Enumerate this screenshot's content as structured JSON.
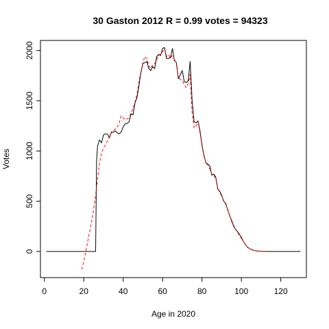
{
  "chart_data": {
    "type": "line",
    "title": "30 Gaston 2012 R = 0.99 votes = 94323",
    "xlabel": "Age in 2020",
    "ylabel": "Votes",
    "xlim": [
      -2,
      133
    ],
    "ylim": [
      -260,
      2100
    ],
    "x_ticks": [
      0,
      20,
      40,
      60,
      80,
      100,
      120
    ],
    "y_ticks": [
      0,
      500,
      1000,
      1500,
      2000
    ],
    "grid": false,
    "legend": "none",
    "series": [
      {
        "style": "solid",
        "color": "#000000",
        "points": [
          [
            1,
            0
          ],
          [
            10,
            0
          ],
          [
            20,
            0
          ],
          [
            26,
            0
          ],
          [
            26.5,
            900
          ],
          [
            27,
            1050
          ],
          [
            28,
            1110
          ],
          [
            29,
            1080
          ],
          [
            30,
            1160
          ],
          [
            31,
            1170
          ],
          [
            32,
            1170
          ],
          [
            33,
            1130
          ],
          [
            34,
            1190
          ],
          [
            35,
            1185
          ],
          [
            36,
            1200
          ],
          [
            37,
            1180
          ],
          [
            38,
            1170
          ],
          [
            39,
            1190
          ],
          [
            40,
            1240
          ],
          [
            41,
            1270
          ],
          [
            42,
            1275
          ],
          [
            43,
            1290
          ],
          [
            44,
            1370
          ],
          [
            45,
            1360
          ],
          [
            46,
            1480
          ],
          [
            47,
            1530
          ],
          [
            48,
            1650
          ],
          [
            49,
            1780
          ],
          [
            50,
            1870
          ],
          [
            51,
            1880
          ],
          [
            52,
            1890
          ],
          [
            53,
            1820
          ],
          [
            54,
            1800
          ],
          [
            55,
            1840
          ],
          [
            56,
            1820
          ],
          [
            57,
            1940
          ],
          [
            58,
            1960
          ],
          [
            59,
            1950
          ],
          [
            60,
            2020
          ],
          [
            61,
            2030
          ],
          [
            62,
            1920
          ],
          [
            63,
            1920
          ],
          [
            64,
            1930
          ],
          [
            65,
            2020
          ],
          [
            66,
            1900
          ],
          [
            67,
            1880
          ],
          [
            68,
            1720
          ],
          [
            69,
            1760
          ],
          [
            70,
            1800
          ],
          [
            71,
            1690
          ],
          [
            72,
            1680
          ],
          [
            73,
            1700
          ],
          [
            74,
            1890
          ],
          [
            75,
            1500
          ],
          [
            76,
            1290
          ],
          [
            77,
            1280
          ],
          [
            78,
            1300
          ],
          [
            79,
            1200
          ],
          [
            80,
            1060
          ],
          [
            81,
            960
          ],
          [
            82,
            880
          ],
          [
            83,
            870
          ],
          [
            84,
            850
          ],
          [
            85,
            760
          ],
          [
            86,
            770
          ],
          [
            87,
            740
          ],
          [
            88,
            620
          ],
          [
            89,
            600
          ],
          [
            90,
            560
          ],
          [
            91,
            500
          ],
          [
            92,
            480
          ],
          [
            93,
            420
          ],
          [
            94,
            360
          ],
          [
            95,
            310
          ],
          [
            96,
            260
          ],
          [
            97,
            220
          ],
          [
            98,
            200
          ],
          [
            99,
            170
          ],
          [
            100,
            140
          ],
          [
            101,
            100
          ],
          [
            102,
            70
          ],
          [
            103,
            45
          ],
          [
            104,
            30
          ],
          [
            105,
            20
          ],
          [
            106,
            12
          ],
          [
            107,
            8
          ],
          [
            108,
            5
          ],
          [
            109,
            3
          ],
          [
            110,
            2
          ],
          [
            112,
            1
          ],
          [
            115,
            0
          ],
          [
            120,
            0
          ],
          [
            125,
            0
          ],
          [
            130,
            0
          ]
        ]
      },
      {
        "style": "dashed",
        "color": "#ff0000",
        "points": [
          [
            19,
            -180
          ],
          [
            20,
            -100
          ],
          [
            21,
            0
          ],
          [
            22,
            100
          ],
          [
            23,
            200
          ],
          [
            24,
            300
          ],
          [
            25,
            420
          ],
          [
            26,
            560
          ],
          [
            27,
            720
          ],
          [
            28,
            880
          ],
          [
            29,
            980
          ],
          [
            30,
            1030
          ],
          [
            31,
            1060
          ],
          [
            32,
            1100
          ],
          [
            33,
            1140
          ],
          [
            34,
            1180
          ],
          [
            35,
            1200
          ],
          [
            36,
            1220
          ],
          [
            37,
            1240
          ],
          [
            38,
            1280
          ],
          [
            39,
            1350
          ],
          [
            40,
            1330
          ],
          [
            41,
            1310
          ],
          [
            42,
            1320
          ],
          [
            43,
            1330
          ],
          [
            44,
            1380
          ],
          [
            45,
            1420
          ],
          [
            46,
            1490
          ],
          [
            47,
            1560
          ],
          [
            48,
            1690
          ],
          [
            49,
            1790
          ],
          [
            50,
            1880
          ],
          [
            51,
            1940
          ],
          [
            52,
            1920
          ],
          [
            53,
            1850
          ],
          [
            54,
            1820
          ],
          [
            55,
            1860
          ],
          [
            56,
            1870
          ],
          [
            57,
            1910
          ],
          [
            58,
            1950
          ],
          [
            59,
            1960
          ],
          [
            60,
            1990
          ],
          [
            61,
            2010
          ],
          [
            62,
            1940
          ],
          [
            63,
            1960
          ],
          [
            64,
            1920
          ],
          [
            65,
            1960
          ],
          [
            66,
            1920
          ],
          [
            67,
            1860
          ],
          [
            68,
            1730
          ],
          [
            69,
            1710
          ],
          [
            70,
            1700
          ],
          [
            71,
            1660
          ],
          [
            72,
            1630
          ],
          [
            73,
            1670
          ],
          [
            74,
            1760
          ],
          [
            75,
            1380
          ],
          [
            76,
            1230
          ],
          [
            77,
            1250
          ],
          [
            78,
            1290
          ],
          [
            79,
            1180
          ],
          [
            80,
            1050
          ],
          [
            81,
            950
          ],
          [
            82,
            880
          ],
          [
            83,
            860
          ],
          [
            84,
            820
          ],
          [
            85,
            770
          ],
          [
            86,
            760
          ],
          [
            87,
            720
          ],
          [
            88,
            630
          ],
          [
            89,
            590
          ],
          [
            90,
            550
          ],
          [
            91,
            510
          ],
          [
            92,
            470
          ],
          [
            93,
            420
          ],
          [
            94,
            360
          ],
          [
            95,
            300
          ],
          [
            96,
            250
          ],
          [
            97,
            220
          ],
          [
            98,
            190
          ],
          [
            99,
            160
          ],
          [
            100,
            130
          ],
          [
            101,
            100
          ],
          [
            102,
            70
          ],
          [
            103,
            45
          ],
          [
            104,
            30
          ],
          [
            105,
            20
          ],
          [
            106,
            12
          ],
          [
            107,
            8
          ],
          [
            108,
            5
          ],
          [
            110,
            2
          ],
          [
            112,
            1
          ]
        ]
      }
    ]
  }
}
